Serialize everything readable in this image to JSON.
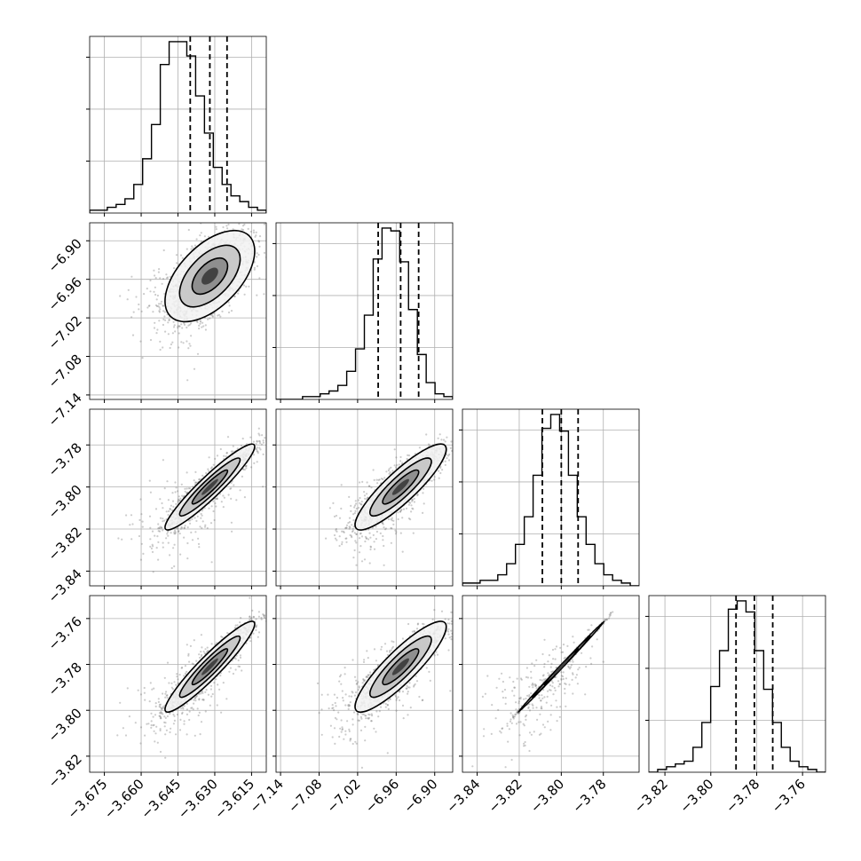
{
  "chart_data": {
    "type": "corner",
    "parameters": 4,
    "axis_labels": [],
    "ranges": [
      [
        -3.681,
        -3.609
      ],
      [
        -7.147,
        -6.872
      ],
      [
        -3.847,
        -3.763
      ],
      [
        -3.827,
        -3.75
      ]
    ],
    "ticks": [
      [
        "−3.675",
        "−3.660",
        "−3.645",
        "−3.630",
        "−3.615"
      ],
      [
        "−7.14",
        "−7.08",
        "−7.02",
        "−6.96",
        "−6.90"
      ],
      [
        "−3.84",
        "−3.82",
        "−3.80",
        "−3.78"
      ],
      [
        "−3.82",
        "−3.80",
        "−3.78",
        "−3.76"
      ]
    ],
    "tick_values": [
      [
        -3.675,
        -3.66,
        -3.645,
        -3.63,
        -3.615
      ],
      [
        -7.14,
        -7.08,
        -7.02,
        -6.96,
        -6.9
      ],
      [
        -3.84,
        -3.82,
        -3.8,
        -3.78
      ],
      [
        -3.82,
        -3.8,
        -3.78,
        -3.76
      ]
    ],
    "quantiles": [
      [
        -3.64,
        -3.632,
        -3.625
      ],
      [
        -6.988,
        -6.953,
        -6.925
      ],
      [
        -3.809,
        -3.8,
        -3.792
      ],
      [
        -3.789,
        -3.781,
        -3.773
      ]
    ],
    "histograms": [
      {
        "start": -3.681,
        "step": 0.0036,
        "counts": [
          1,
          1,
          2,
          3,
          5,
          10,
          19,
          31,
          52,
          60,
          60,
          55,
          41,
          28,
          16,
          10,
          6,
          4,
          2,
          1
        ]
      },
      {
        "start": -7.147,
        "step": 0.01375,
        "counts": [
          0,
          0,
          0,
          1,
          1,
          2,
          3,
          5,
          10,
          18,
          30,
          50,
          61,
          60,
          49,
          32,
          16,
          6,
          2,
          1
        ]
      },
      {
        "start": -3.847,
        "step": 0.0042,
        "counts": [
          1,
          1,
          2,
          2,
          4,
          8,
          15,
          25,
          40,
          57,
          62,
          56,
          40,
          25,
          15,
          8,
          4,
          2,
          1,
          0
        ]
      },
      {
        "start": -3.827,
        "step": 0.00385,
        "counts": [
          0,
          1,
          2,
          3,
          4,
          9,
          18,
          31,
          44,
          59,
          62,
          58,
          44,
          30,
          18,
          9,
          4,
          2,
          1,
          0
        ]
      }
    ],
    "correlation": {
      "1,0": {
        "mean": [
          -3.632,
          -6.955
        ],
        "sd": [
          0.0085,
          0.033
        ],
        "rho": 0.55
      },
      "2,0": {
        "mean": [
          -3.632,
          -3.8
        ],
        "sd": [
          0.0085,
          0.0095
        ],
        "rho": 0.94
      },
      "2,1": {
        "mean": [
          -6.953,
          -3.8
        ],
        "sd": [
          0.033,
          0.0095
        ],
        "rho": 0.88
      },
      "3,0": {
        "mean": [
          -3.632,
          -3.781
        ],
        "sd": [
          0.0085,
          0.0092
        ],
        "rho": 0.94
      },
      "3,1": {
        "mean": [
          -6.953,
          -3.781
        ],
        "sd": [
          0.033,
          0.0092
        ],
        "rho": 0.88
      },
      "3,2": {
        "mean": [
          -3.8,
          -3.781
        ],
        "sd": [
          0.0095,
          0.0092
        ],
        "rho": 0.999
      }
    },
    "grid": true,
    "quantile_lines": "dashed",
    "contour_levels": 3
  }
}
